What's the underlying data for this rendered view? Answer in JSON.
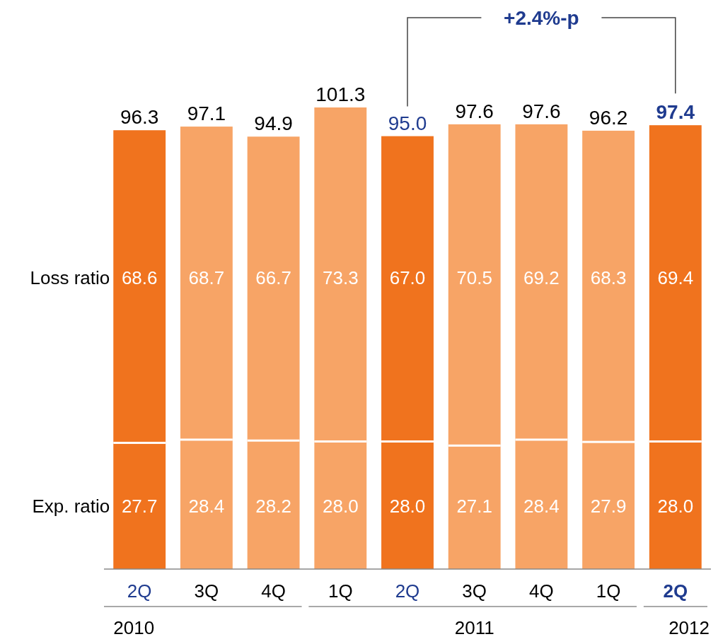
{
  "chart_data": {
    "type": "bar",
    "stacked": true,
    "categories": [
      "2Q",
      "3Q",
      "4Q",
      "1Q",
      "2Q",
      "3Q",
      "4Q",
      "1Q",
      "2Q"
    ],
    "series": [
      {
        "name": "Exp. ratio",
        "colors": [
          "#f0731e",
          "#f7a466",
          "#f7a466",
          "#f7a466",
          "#f0731e",
          "#f7a466",
          "#f7a466",
          "#f7a466",
          "#f0731e"
        ],
        "values": [
          27.7,
          28.4,
          28.2,
          28.0,
          28.0,
          27.1,
          28.4,
          27.9,
          28.0
        ],
        "value_labels": [
          "27.7",
          "28.4",
          "28.2",
          "28.0",
          "28.0",
          "27.1",
          "28.4",
          "27.9",
          "28.0"
        ]
      },
      {
        "name": "Loss ratio",
        "colors": [
          "#f0731e",
          "#f7a466",
          "#f7a466",
          "#f7a466",
          "#f0731e",
          "#f7a466",
          "#f7a466",
          "#f7a466",
          "#f0731e"
        ],
        "values": [
          68.6,
          68.7,
          66.7,
          73.3,
          67.0,
          70.5,
          69.2,
          68.3,
          69.4
        ],
        "value_labels": [
          "68.6",
          "68.7",
          "66.7",
          "73.3",
          "67.0",
          "70.5",
          "69.2",
          "68.3",
          "69.4"
        ]
      }
    ],
    "totals": [
      "96.3",
      "97.1",
      "94.9",
      "101.3",
      "95.0",
      "97.6",
      "97.6",
      "96.2",
      "97.4"
    ],
    "annotations": [
      "2010",
      "2011",
      "2012",
      {
        "text": "+2.4%-p"
      }
    ]
  }
}
